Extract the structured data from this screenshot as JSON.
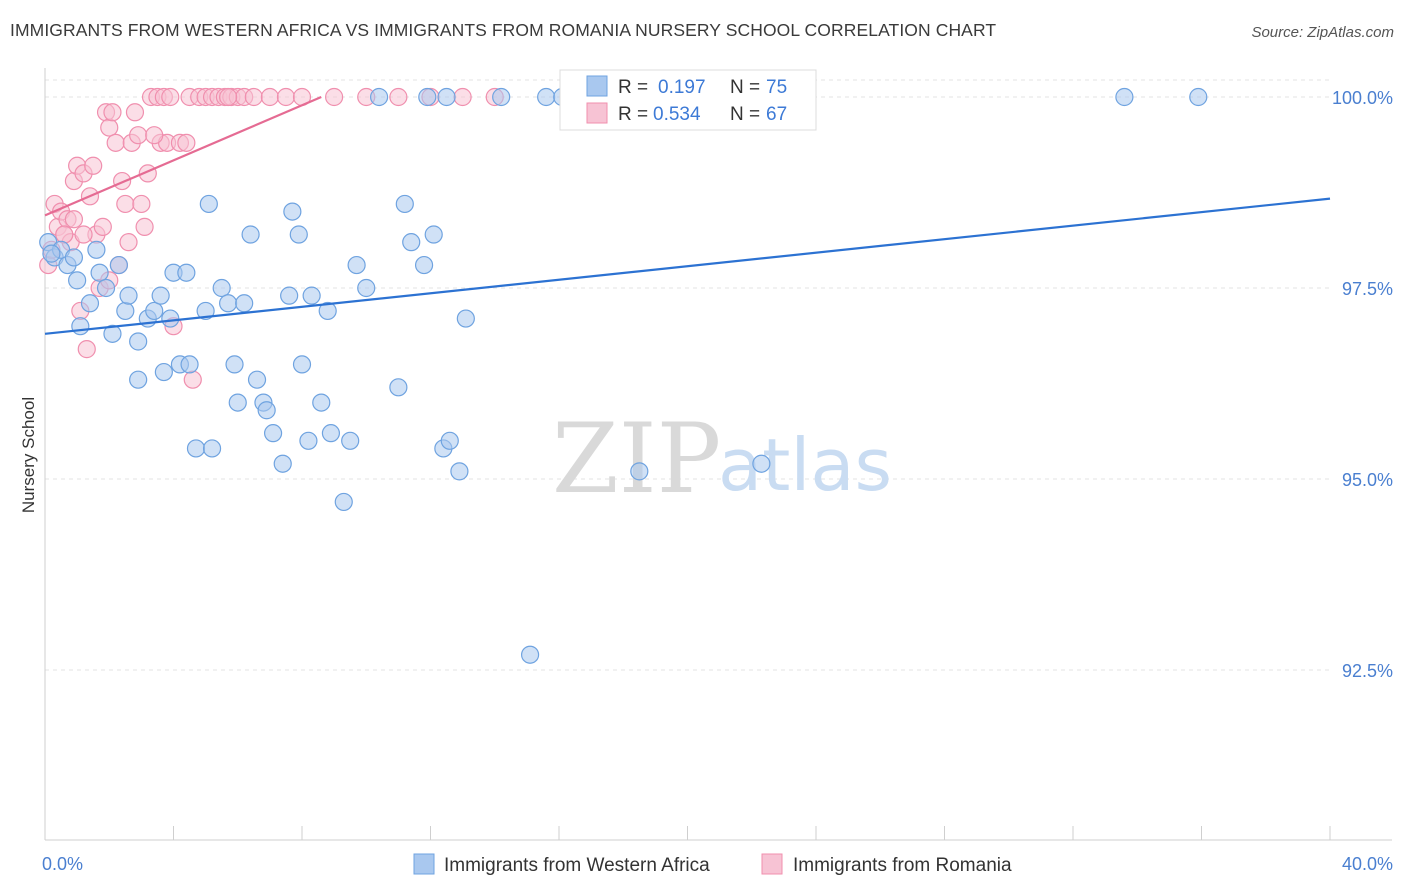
{
  "title": "IMMIGRANTS FROM WESTERN AFRICA VS IMMIGRANTS FROM ROMANIA NURSERY SCHOOL CORRELATION CHART",
  "source": "Source: ZipAtlas.com",
  "watermark": {
    "zip": "ZIP",
    "atlas": "atlas"
  },
  "colors": {
    "blue": "#6fa3e0",
    "blue_fill": "#a9c8ef",
    "blue_line": "#2c72d2",
    "pink": "#f08fae",
    "pink_fill": "#f7c3d4",
    "pink_line": "#e56b93",
    "tick_text": "#4a7fd0",
    "grid": "#e3e3e3"
  },
  "chart_data": {
    "type": "scatter",
    "xlabel": "",
    "ylabel": "Nursery School",
    "xlim": [
      0,
      40
    ],
    "ylim": [
      90.5,
      100.25
    ],
    "x_tick_labels": [
      {
        "value": 0,
        "label": "0.0%"
      },
      {
        "value": 40,
        "label": "40.0%"
      }
    ],
    "x_minor_ticks": [
      0,
      4,
      8,
      12,
      16,
      20,
      24,
      28,
      32,
      36,
      40
    ],
    "y_ticks": [
      {
        "value": 100.0,
        "label": "100.0%"
      },
      {
        "value": 97.5,
        "label": "97.5%"
      },
      {
        "value": 95.0,
        "label": "95.0%"
      },
      {
        "value": 92.5,
        "label": "92.5%"
      }
    ],
    "legend": {
      "entries": [
        {
          "r_label": "R =",
          "r": "0.197",
          "n_label": "N =",
          "n": "75"
        },
        {
          "r_label": "R =",
          "r": "0.534",
          "n_label": "N =",
          "n": "67"
        }
      ]
    },
    "series": [
      {
        "name": "Immigrants from Western Africa",
        "color": "#6fa3e0",
        "trend": {
          "x0": 0,
          "y0": 96.9,
          "x1": 40,
          "y1": 98.67
        },
        "points": [
          [
            0.1,
            98.1
          ],
          [
            0.3,
            97.9
          ],
          [
            0.5,
            98.0
          ],
          [
            0.7,
            97.8
          ],
          [
            0.9,
            97.9
          ],
          [
            1.0,
            97.6
          ],
          [
            1.1,
            97.0
          ],
          [
            1.4,
            97.3
          ],
          [
            1.6,
            98.0
          ],
          [
            1.7,
            97.7
          ],
          [
            1.9,
            97.5
          ],
          [
            2.1,
            96.9
          ],
          [
            2.3,
            97.8
          ],
          [
            2.5,
            97.2
          ],
          [
            2.6,
            97.4
          ],
          [
            2.9,
            96.3
          ],
          [
            2.9,
            96.8
          ],
          [
            3.2,
            97.1
          ],
          [
            3.4,
            97.2
          ],
          [
            3.6,
            97.4
          ],
          [
            3.7,
            96.4
          ],
          [
            3.9,
            97.1
          ],
          [
            4.0,
            97.7
          ],
          [
            4.2,
            96.5
          ],
          [
            4.4,
            97.7
          ],
          [
            4.5,
            96.5
          ],
          [
            4.7,
            95.4
          ],
          [
            5.0,
            97.2
          ],
          [
            5.1,
            98.6
          ],
          [
            5.2,
            95.4
          ],
          [
            5.5,
            97.5
          ],
          [
            5.7,
            97.3
          ],
          [
            5.9,
            96.5
          ],
          [
            6.0,
            96.0
          ],
          [
            6.2,
            97.3
          ],
          [
            6.4,
            98.2
          ],
          [
            6.6,
            96.3
          ],
          [
            6.8,
            96.0
          ],
          [
            6.9,
            95.9
          ],
          [
            7.1,
            95.6
          ],
          [
            7.4,
            95.2
          ],
          [
            7.6,
            97.4
          ],
          [
            7.7,
            98.5
          ],
          [
            7.9,
            98.2
          ],
          [
            8.0,
            96.5
          ],
          [
            8.2,
            95.5
          ],
          [
            8.3,
            97.4
          ],
          [
            8.6,
            96.0
          ],
          [
            8.8,
            97.2
          ],
          [
            8.9,
            95.6
          ],
          [
            9.3,
            94.7
          ],
          [
            9.5,
            95.5
          ],
          [
            9.7,
            97.8
          ],
          [
            10.0,
            97.5
          ],
          [
            10.4,
            100.0
          ],
          [
            11.0,
            96.2
          ],
          [
            11.2,
            98.6
          ],
          [
            11.4,
            98.1
          ],
          [
            11.8,
            97.8
          ],
          [
            11.9,
            100.0
          ],
          [
            12.1,
            98.2
          ],
          [
            12.4,
            95.4
          ],
          [
            12.5,
            100.0
          ],
          [
            12.6,
            95.5
          ],
          [
            12.9,
            95.1
          ],
          [
            13.1,
            97.1
          ],
          [
            14.2,
            100.0
          ],
          [
            15.1,
            92.7
          ],
          [
            15.6,
            100.0
          ],
          [
            16.1,
            100.0
          ],
          [
            18.5,
            95.1
          ],
          [
            22.3,
            95.2
          ],
          [
            33.6,
            100.0
          ],
          [
            35.9,
            100.0
          ],
          [
            0.2,
            97.95
          ]
        ]
      },
      {
        "name": "Immigrants from Romania",
        "color": "#f08fae",
        "trend": {
          "x0": 0,
          "y0": 98.45,
          "x1": 8.6,
          "y1": 100.0
        },
        "points": [
          [
            0.1,
            97.8
          ],
          [
            0.2,
            98.0
          ],
          [
            0.3,
            98.6
          ],
          [
            0.4,
            98.3
          ],
          [
            0.5,
            98.5
          ],
          [
            0.6,
            98.2
          ],
          [
            0.7,
            98.4
          ],
          [
            0.8,
            98.1
          ],
          [
            0.9,
            98.9
          ],
          [
            1.0,
            99.1
          ],
          [
            1.1,
            97.2
          ],
          [
            1.2,
            99.0
          ],
          [
            1.3,
            96.7
          ],
          [
            1.4,
            98.7
          ],
          [
            1.5,
            99.1
          ],
          [
            1.6,
            98.2
          ],
          [
            1.7,
            97.5
          ],
          [
            1.8,
            98.3
          ],
          [
            1.9,
            99.8
          ],
          [
            2.0,
            99.6
          ],
          [
            2.1,
            99.8
          ],
          [
            2.2,
            99.4
          ],
          [
            2.3,
            97.8
          ],
          [
            2.4,
            98.9
          ],
          [
            2.5,
            98.6
          ],
          [
            2.6,
            98.1
          ],
          [
            2.7,
            99.4
          ],
          [
            2.8,
            99.8
          ],
          [
            2.9,
            99.5
          ],
          [
            3.0,
            98.6
          ],
          [
            3.1,
            98.3
          ],
          [
            3.2,
            99.0
          ],
          [
            3.3,
            100.0
          ],
          [
            3.5,
            100.0
          ],
          [
            3.6,
            99.4
          ],
          [
            3.7,
            100.0
          ],
          [
            3.8,
            99.4
          ],
          [
            3.9,
            100.0
          ],
          [
            4.0,
            97.0
          ],
          [
            4.2,
            99.4
          ],
          [
            4.4,
            99.4
          ],
          [
            4.5,
            100.0
          ],
          [
            4.6,
            96.3
          ],
          [
            4.8,
            100.0
          ],
          [
            5.0,
            100.0
          ],
          [
            5.2,
            100.0
          ],
          [
            5.4,
            100.0
          ],
          [
            5.6,
            100.0
          ],
          [
            5.8,
            100.0
          ],
          [
            6.0,
            100.0
          ],
          [
            6.2,
            100.0
          ],
          [
            6.5,
            100.0
          ],
          [
            7.0,
            100.0
          ],
          [
            7.5,
            100.0
          ],
          [
            8.0,
            100.0
          ],
          [
            9.0,
            100.0
          ],
          [
            10.0,
            100.0
          ],
          [
            11.0,
            100.0
          ],
          [
            12.0,
            100.0
          ],
          [
            13.0,
            100.0
          ],
          [
            14.0,
            100.0
          ],
          [
            1.2,
            98.2
          ],
          [
            2.0,
            97.6
          ],
          [
            0.6,
            98.2
          ],
          [
            0.9,
            98.4
          ],
          [
            3.4,
            99.5
          ],
          [
            5.7,
            100.0
          ]
        ]
      }
    ]
  }
}
